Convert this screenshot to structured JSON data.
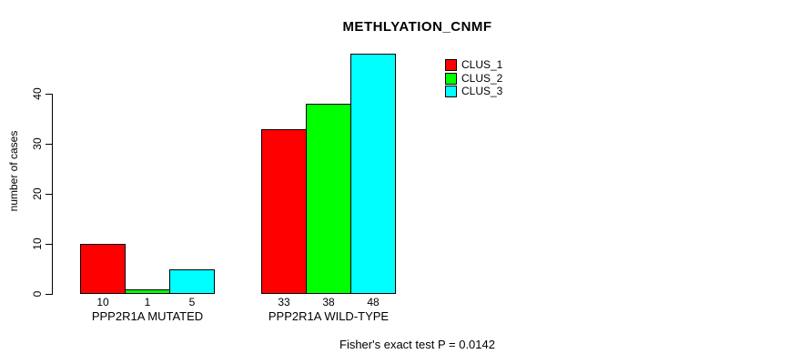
{
  "chart_data": {
    "type": "bar",
    "title": "METHLYATION_CNMF",
    "xlabel": "",
    "ylabel": "number of cases",
    "categories": [
      "PPP2R1A MUTATED",
      "PPP2R1A WILD-TYPE"
    ],
    "series": [
      {
        "name": "CLUS_1",
        "color": "#ff0000",
        "values": [
          10,
          33
        ]
      },
      {
        "name": "CLUS_2",
        "color": "#00ff00",
        "values": [
          1,
          38
        ]
      },
      {
        "name": "CLUS_3",
        "color": "#00ffff",
        "values": [
          5,
          48
        ]
      }
    ],
    "bar_value_labels": [
      [
        "10",
        "1",
        "5"
      ],
      [
        "33",
        "38",
        "48"
      ]
    ],
    "yticks": [
      "0",
      "10",
      "20",
      "30",
      "40"
    ],
    "ylim": [
      0,
      48
    ],
    "grid": false,
    "legend_position": "top-right-inside",
    "legend_entries": [
      "CLUS_1",
      "CLUS_2",
      "CLUS_3"
    ],
    "annotation": "Fisher's exact test P = 0.0142"
  },
  "colors": {
    "clus_1": "#ff0000",
    "clus_2": "#00ff00",
    "clus_3": "#00ffff",
    "axis": "#000000",
    "background": "#ffffff"
  }
}
